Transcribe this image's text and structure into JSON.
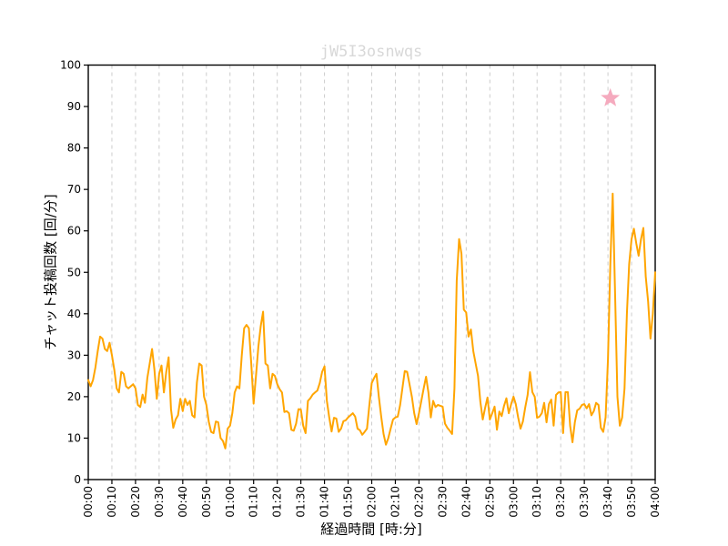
{
  "title": "jW5I3osnwqs",
  "title_color": "#d8d8d8",
  "chart_data": {
    "type": "line",
    "title": "jW5I3osnwqs",
    "xlabel": "経過時間 [時:分]",
    "ylabel": "チャット投稿回数 [回/分]",
    "x_tick_labels": [
      "00:00",
      "00:10",
      "00:20",
      "00:30",
      "00:40",
      "00:50",
      "01:00",
      "01:10",
      "01:20",
      "01:30",
      "01:40",
      "01:50",
      "02:00",
      "02:10",
      "02:20",
      "02:30",
      "02:40",
      "02:50",
      "03:00",
      "03:10",
      "03:20",
      "03:30",
      "03:40",
      "03:50",
      "04:00"
    ],
    "x_tick_interval_minutes": 10,
    "xlim_minutes": [
      0,
      240
    ],
    "y_ticks": [
      0,
      10,
      20,
      30,
      40,
      50,
      60,
      70,
      80,
      90,
      100
    ],
    "ylim": [
      0,
      100
    ],
    "grid": "vertical-dashed",
    "grid_color": "#cccccc",
    "line_color": "#ffa500",
    "series": [
      {
        "name": "chat-posts-per-minute",
        "x_start_minute": 0,
        "x_step_minutes": 1,
        "values": [
          24,
          22.5,
          24,
          27,
          31,
          34.5,
          34,
          31.5,
          31,
          33,
          30,
          26.5,
          22,
          21,
          26,
          25.5,
          22.5,
          22,
          22.5,
          23,
          22,
          18,
          17.5,
          20.5,
          18.5,
          24.5,
          28,
          31.5,
          26.5,
          19.5,
          25.5,
          27.5,
          21,
          26,
          29.5,
          17,
          12.5,
          14.5,
          15.5,
          19.5,
          16.5,
          19.5,
          18,
          19,
          15.5,
          15,
          23.5,
          28,
          27.5,
          20,
          18,
          14,
          11.5,
          11.2,
          14,
          13.8,
          10,
          9.3,
          7.5,
          12.3,
          13,
          16,
          21,
          22.5,
          22,
          30,
          36.5,
          37.3,
          36.5,
          28,
          18.3,
          25,
          32,
          37,
          40.5,
          28,
          27.5,
          22,
          25.5,
          25,
          23,
          21.8,
          21,
          16.3,
          16.5,
          16,
          12,
          11.8,
          13.5,
          17,
          16.9,
          13,
          11.2,
          19,
          19.6,
          20.5,
          21,
          21.5,
          23.3,
          26,
          27.3,
          19,
          15,
          11.6,
          14.9,
          14.7,
          11.5,
          12.3,
          14.1,
          14.3,
          15,
          15.5,
          16,
          15.2,
          12.3,
          11.9,
          10.8,
          11.5,
          12.3,
          18,
          23.3,
          24.5,
          25.5,
          20,
          15.2,
          11,
          8.4,
          10,
          12.3,
          14.5,
          15,
          15.2,
          18,
          22,
          26.2,
          26,
          23,
          20,
          16,
          13.4,
          16,
          19,
          22,
          24.8,
          21,
          15,
          19,
          17.5,
          18,
          17.8,
          17.6,
          13.5,
          12.5,
          11.8,
          11,
          22,
          48,
          58,
          54.5,
          41,
          40.3,
          34.5,
          36.2,
          31,
          28,
          25,
          18.7,
          14.5,
          17.3,
          19.8,
          14.5,
          16,
          17.6,
          12,
          16.4,
          15.3,
          17.8,
          19.6,
          16,
          18.2,
          20,
          18.2,
          15,
          12.3,
          14,
          17.4,
          20.4,
          25.9,
          21.1,
          20,
          14.9,
          15.2,
          16,
          18.5,
          13.8,
          18.2,
          19.3,
          13,
          20.4,
          21,
          21.1,
          11.2,
          21.1,
          21.1,
          13,
          9,
          13.8,
          16.7,
          17.1,
          18,
          18.2,
          17.2,
          18.2,
          15.5,
          16.5,
          18.5,
          18,
          12.5,
          11.5,
          15,
          29,
          52,
          69,
          45,
          20,
          13,
          15,
          22,
          40,
          52,
          58,
          60.5,
          57,
          54,
          58,
          60.7,
          49,
          43,
          34,
          40,
          50
        ]
      }
    ],
    "annotation_marker": {
      "type": "star",
      "x_minutes": 221,
      "y": 92,
      "color": "#f5aabe"
    }
  }
}
